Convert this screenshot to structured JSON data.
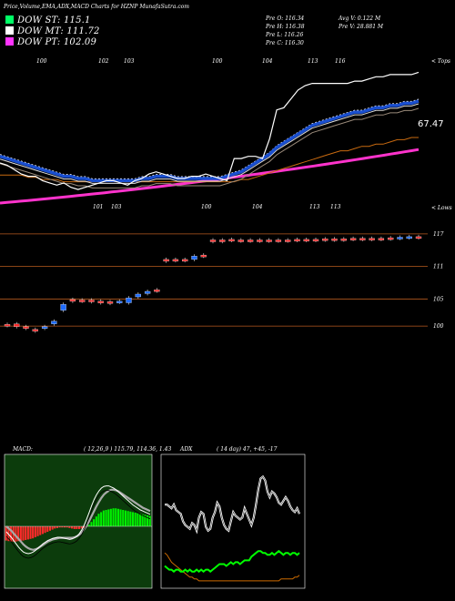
{
  "header": {
    "title": "Price,Volume,EMA,ADX,MACD Charts for HZNP MunafaSutra.com"
  },
  "legend": [
    {
      "label": "DOW ST: 115.1",
      "color": "#00ff66"
    },
    {
      "label": "DOW MT: 111.72",
      "color": "#ffffff"
    },
    {
      "label": "DOW PT: 102.09",
      "color": "#ff33ff"
    }
  ],
  "quote": {
    "open": "Pre  O: 116.34",
    "high": "Pre  H: 116.38",
    "low": "Pre  L: 116.26",
    "close": "Pre  C: 116.30",
    "avg_vol": "Avg V: 0.122  M",
    "pre_vol": "Pre  V: 28.881 M"
  },
  "colors": {
    "background": "#000000",
    "up": "#1e6cff",
    "down": "#ff2a2a",
    "ema_fast": "#1a4fd0",
    "price": "#ffffff",
    "grid": "#b85a1e",
    "macd_bg": "#0c3c0c",
    "macd_pos": "#00ee00",
    "macd_neg": "#ff2a2a",
    "adx_green": "#00ff00",
    "adx_orange": "#cc6a00",
    "volume_band": "#ff33cc"
  },
  "chart_data": [
    {
      "type": "line",
      "name": "price-ema-panel",
      "top_labels": [
        "100",
        "102",
        "103",
        "100",
        "104",
        "113",
        "116"
      ],
      "bottom_labels": [
        "101",
        "103",
        "100",
        "104",
        "113",
        "113"
      ],
      "top_right_label": "< Tops",
      "bottom_right_label": "< Lows",
      "last_value_label": "67.47",
      "x": [
        0,
        1,
        2,
        3,
        4,
        5,
        6,
        7,
        8,
        9,
        10,
        11,
        12,
        13,
        14,
        15,
        16,
        17,
        18,
        19,
        20,
        21,
        22,
        23,
        24,
        25,
        26,
        27,
        28,
        29,
        30,
        31,
        32,
        33,
        34,
        35,
        36,
        37,
        38,
        39,
        40,
        41,
        42,
        43,
        44,
        45,
        46,
        47,
        48,
        49,
        50,
        51,
        52,
        53,
        54,
        55,
        56,
        57,
        58,
        59
      ],
      "series": [
        {
          "values": [
            61,
            60,
            58,
            56,
            55,
            55,
            53,
            52,
            51,
            52,
            50,
            49,
            50,
            51,
            52,
            53,
            53,
            52,
            51,
            53,
            54,
            56,
            57,
            56,
            55,
            54,
            54,
            55,
            55,
            56,
            55,
            54,
            53,
            63,
            63,
            64,
            64,
            63,
            72,
            85,
            86,
            90,
            94,
            96,
            97,
            97,
            97,
            97,
            97,
            97,
            98,
            98,
            99,
            100,
            100,
            101,
            101,
            101,
            101,
            102
          ]
        },
        {
          "values": [
            64,
            63,
            62,
            61,
            60,
            59,
            58,
            57,
            56,
            55,
            55,
            54,
            54,
            53,
            53,
            53,
            53,
            53,
            53,
            53,
            54,
            54,
            55,
            55,
            55,
            54,
            54,
            54,
            54,
            54,
            54,
            54,
            55,
            56,
            57,
            59,
            61,
            63,
            65,
            68,
            70,
            72,
            74,
            76,
            78,
            79,
            80,
            81,
            82,
            83,
            84,
            84,
            85,
            86,
            86,
            87,
            87,
            88,
            88,
            89
          ]
        },
        {
          "values": [
            58,
            58,
            58,
            58,
            57,
            57,
            56,
            56,
            56,
            55,
            55,
            55,
            55,
            55,
            55,
            55,
            55,
            55,
            55,
            55,
            55,
            55,
            55,
            55,
            55,
            55,
            55,
            55,
            55,
            55,
            55,
            55,
            55,
            55,
            56,
            56,
            57,
            58,
            59,
            60,
            61,
            62,
            63,
            64,
            65,
            66,
            67,
            68,
            69,
            69,
            70,
            71,
            71,
            72,
            72,
            73,
            74,
            74,
            75,
            75
          ]
        }
      ]
    },
    {
      "type": "scatter",
      "name": "candle-panel",
      "price_labels": [
        "117",
        "111",
        "105",
        "100"
      ],
      "price_levels": [
        117,
        111,
        105,
        100
      ],
      "ylim": [
        98,
        119
      ],
      "candles": [
        {
          "o": 100.3,
          "c": 100.1
        },
        {
          "o": 100.4,
          "c": 99.9
        },
        {
          "o": 99.9,
          "c": 99.6
        },
        {
          "o": 99.4,
          "c": 99.1
        },
        {
          "o": 99.6,
          "c": 99.9
        },
        {
          "o": 100.4,
          "c": 100.9
        },
        {
          "o": 102.9,
          "c": 104.0
        },
        {
          "o": 104.9,
          "c": 104.6
        },
        {
          "o": 104.8,
          "c": 104.6
        },
        {
          "o": 104.8,
          "c": 104.5
        },
        {
          "o": 104.6,
          "c": 104.3
        },
        {
          "o": 104.5,
          "c": 104.2
        },
        {
          "o": 104.4,
          "c": 104.6
        },
        {
          "o": 104.3,
          "c": 105.2
        },
        {
          "o": 105.4,
          "c": 105.9
        },
        {
          "o": 106.0,
          "c": 106.4
        },
        {
          "o": 106.7,
          "c": 106.5
        },
        {
          "o": 112.3,
          "c": 112.0
        },
        {
          "o": 112.3,
          "c": 112.1
        },
        {
          "o": 112.3,
          "c": 112.1
        },
        {
          "o": 112.3,
          "c": 112.9
        },
        {
          "o": 113.1,
          "c": 112.9
        },
        {
          "o": 115.9,
          "c": 115.6
        },
        {
          "o": 115.9,
          "c": 115.6
        },
        {
          "o": 116.0,
          "c": 115.8
        },
        {
          "o": 115.9,
          "c": 115.7
        },
        {
          "o": 115.9,
          "c": 115.7
        },
        {
          "o": 115.9,
          "c": 115.7
        },
        {
          "o": 115.9,
          "c": 115.7
        },
        {
          "o": 115.9,
          "c": 115.7
        },
        {
          "o": 115.9,
          "c": 115.7
        },
        {
          "o": 116.0,
          "c": 115.8
        },
        {
          "o": 116.0,
          "c": 115.8
        },
        {
          "o": 116.0,
          "c": 115.8
        },
        {
          "o": 116.1,
          "c": 115.9
        },
        {
          "o": 116.1,
          "c": 115.9
        },
        {
          "o": 116.1,
          "c": 115.9
        },
        {
          "o": 116.2,
          "c": 116.0
        },
        {
          "o": 116.2,
          "c": 116.0
        },
        {
          "o": 116.2,
          "c": 116.0
        },
        {
          "o": 116.2,
          "c": 116.0
        },
        {
          "o": 116.3,
          "c": 116.1
        },
        {
          "o": 116.2,
          "c": 116.4
        },
        {
          "o": 116.3,
          "c": 116.5
        },
        {
          "o": 116.5,
          "c": 116.3
        }
      ]
    },
    {
      "type": "bar",
      "name": "macd-panel",
      "title": "MACD:",
      "params": "( 12,26,9 ) 115.79, 114.36, 1.43",
      "histogram": [
        -2.6,
        -2.7,
        -2.8,
        -2.8,
        -2.8,
        -2.7,
        -2.7,
        -2.6,
        -2.5,
        -2.4,
        -2.3,
        -2.2,
        -2.0,
        -1.8,
        -1.6,
        -1.4,
        -1.2,
        -1.0,
        -0.8,
        -0.6,
        -0.4,
        -0.3,
        -0.2,
        -0.2,
        -0.2,
        -0.2,
        -0.3,
        -0.4,
        -0.5,
        -0.5,
        -0.5,
        -0.4,
        -0.3,
        -0.1,
        0.3,
        0.8,
        1.3,
        1.8,
        2.3,
        2.6,
        2.9,
        3.0,
        3.1,
        3.2,
        3.3,
        3.3,
        3.2,
        3.1,
        3.0,
        2.9,
        2.8,
        2.7,
        2.6,
        2.5,
        2.4,
        2.3,
        2.2,
        2.1,
        2.0,
        1.9
      ],
      "macd_line": [
        -1.0,
        -1.5,
        -2.0,
        -2.6,
        -3.2,
        -3.8,
        -4.3,
        -4.7,
        -4.9,
        -5.0,
        -4.9,
        -4.7,
        -4.4,
        -4.0,
        -3.6,
        -3.2,
        -2.9,
        -2.6,
        -2.4,
        -2.2,
        -2.1,
        -2.0,
        -2.0,
        -2.1,
        -2.2,
        -2.3,
        -2.4,
        -2.3,
        -2.1,
        -1.8,
        -1.3,
        -0.6,
        0.3,
        1.4,
        2.6,
        3.8,
        4.9,
        5.8,
        6.5,
        7.0,
        7.3,
        7.4,
        7.4,
        7.2,
        7.0,
        6.7,
        6.3,
        5.9,
        5.5,
        5.1,
        4.7,
        4.3,
        3.9,
        3.6,
        3.3,
        3.0,
        2.8,
        2.6,
        2.4,
        2.2
      ],
      "signal_line": [
        0.0,
        -0.4,
        -0.8,
        -1.3,
        -1.8,
        -2.3,
        -2.8,
        -3.3,
        -3.7,
        -4.0,
        -4.2,
        -4.3,
        -4.2,
        -4.0,
        -3.7,
        -3.4,
        -3.1,
        -2.8,
        -2.6,
        -2.4,
        -2.3,
        -2.2,
        -2.1,
        -2.1,
        -2.1,
        -2.1,
        -2.1,
        -2.1,
        -2.0,
        -1.8,
        -1.5,
        -1.1,
        -0.5,
        0.2,
        1.0,
        1.9,
        2.8,
        3.7,
        4.5,
        5.2,
        5.8,
        6.2,
        6.5,
        6.7,
        6.7,
        6.6,
        6.4,
        6.1,
        5.8,
        5.5,
        5.2,
        4.9,
        4.6,
        4.3,
        4.0,
        3.7,
        3.4,
        3.2,
        3.0,
        2.8
      ]
    },
    {
      "type": "line",
      "name": "adx-panel",
      "title": "ADX",
      "params": "( 14  day) 47, +45, -17",
      "series": [
        {
          "values": [
            44,
            44,
            43,
            42,
            44,
            41,
            40,
            39,
            35,
            33,
            32,
            31,
            34,
            33,
            30,
            37,
            40,
            39,
            32,
            30,
            31,
            37,
            40,
            45,
            43,
            37,
            33,
            31,
            30,
            35,
            40,
            38,
            37,
            36,
            37,
            42,
            39,
            36,
            33,
            37,
            44,
            52,
            58,
            59,
            57,
            51,
            48,
            51,
            50,
            48,
            45,
            44,
            46,
            48,
            46,
            43,
            41,
            40,
            42,
            39
          ]
        },
        {
          "values": [
            11,
            10,
            9,
            9,
            8,
            9,
            9,
            8,
            8,
            9,
            8,
            9,
            8,
            8,
            9,
            8,
            9,
            8,
            9,
            9,
            8,
            9,
            10,
            11,
            12,
            12,
            12,
            11,
            12,
            13,
            12,
            13,
            13,
            12,
            13,
            14,
            14,
            14,
            16,
            17,
            18,
            19,
            19,
            18,
            18,
            17,
            17,
            18,
            17,
            18,
            19,
            18,
            17,
            18,
            18,
            17,
            18,
            18,
            17,
            18
          ]
        },
        {
          "values": [
            18,
            17,
            15,
            13,
            12,
            11,
            10,
            9,
            8,
            7,
            6,
            5,
            5,
            4,
            4,
            3,
            3,
            3,
            3,
            3,
            3,
            3,
            3,
            3,
            3,
            3,
            3,
            3,
            3,
            3,
            3,
            3,
            3,
            3,
            3,
            3,
            3,
            3,
            3,
            3,
            3,
            3,
            3,
            3,
            3,
            3,
            3,
            3,
            3,
            3,
            3,
            4,
            4,
            4,
            4,
            4,
            4,
            5,
            5,
            6
          ]
        }
      ]
    }
  ]
}
